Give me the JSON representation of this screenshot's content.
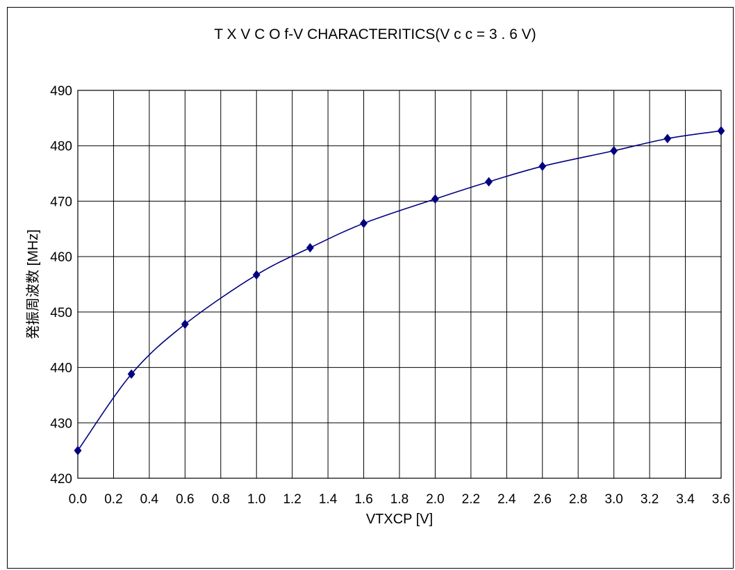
{
  "chart_data": {
    "type": "line",
    "title": "T X V C O  f-V CHARACTERITICS(V c c = 3 . 6 V)",
    "xlabel": "VTXCP [V]",
    "ylabel": "発振周波数 [MHz]",
    "xlim": [
      0.0,
      3.6
    ],
    "ylim": [
      420,
      490
    ],
    "x_ticks": [
      "0.0",
      "0.2",
      "0.4",
      "0.6",
      "0.8",
      "1.0",
      "1.2",
      "1.4",
      "1.6",
      "1.8",
      "2.0",
      "2.2",
      "2.4",
      "2.6",
      "2.8",
      "3.0",
      "3.2",
      "3.4",
      "3.6"
    ],
    "y_ticks": [
      "420",
      "430",
      "440",
      "450",
      "460",
      "470",
      "480",
      "490"
    ],
    "grid": true,
    "series": [
      {
        "color": "#000080",
        "marker": "diamond",
        "points": [
          {
            "x": 0.0,
            "y": 425.0
          },
          {
            "x": 0.3,
            "y": 438.8
          },
          {
            "x": 0.6,
            "y": 447.8
          },
          {
            "x": 1.0,
            "y": 456.7
          },
          {
            "x": 1.3,
            "y": 461.6
          },
          {
            "x": 1.6,
            "y": 466.0
          },
          {
            "x": 2.0,
            "y": 470.4
          },
          {
            "x": 2.3,
            "y": 473.5
          },
          {
            "x": 2.6,
            "y": 476.3
          },
          {
            "x": 3.0,
            "y": 479.1
          },
          {
            "x": 3.3,
            "y": 481.3
          },
          {
            "x": 3.6,
            "y": 482.7
          }
        ]
      }
    ]
  }
}
